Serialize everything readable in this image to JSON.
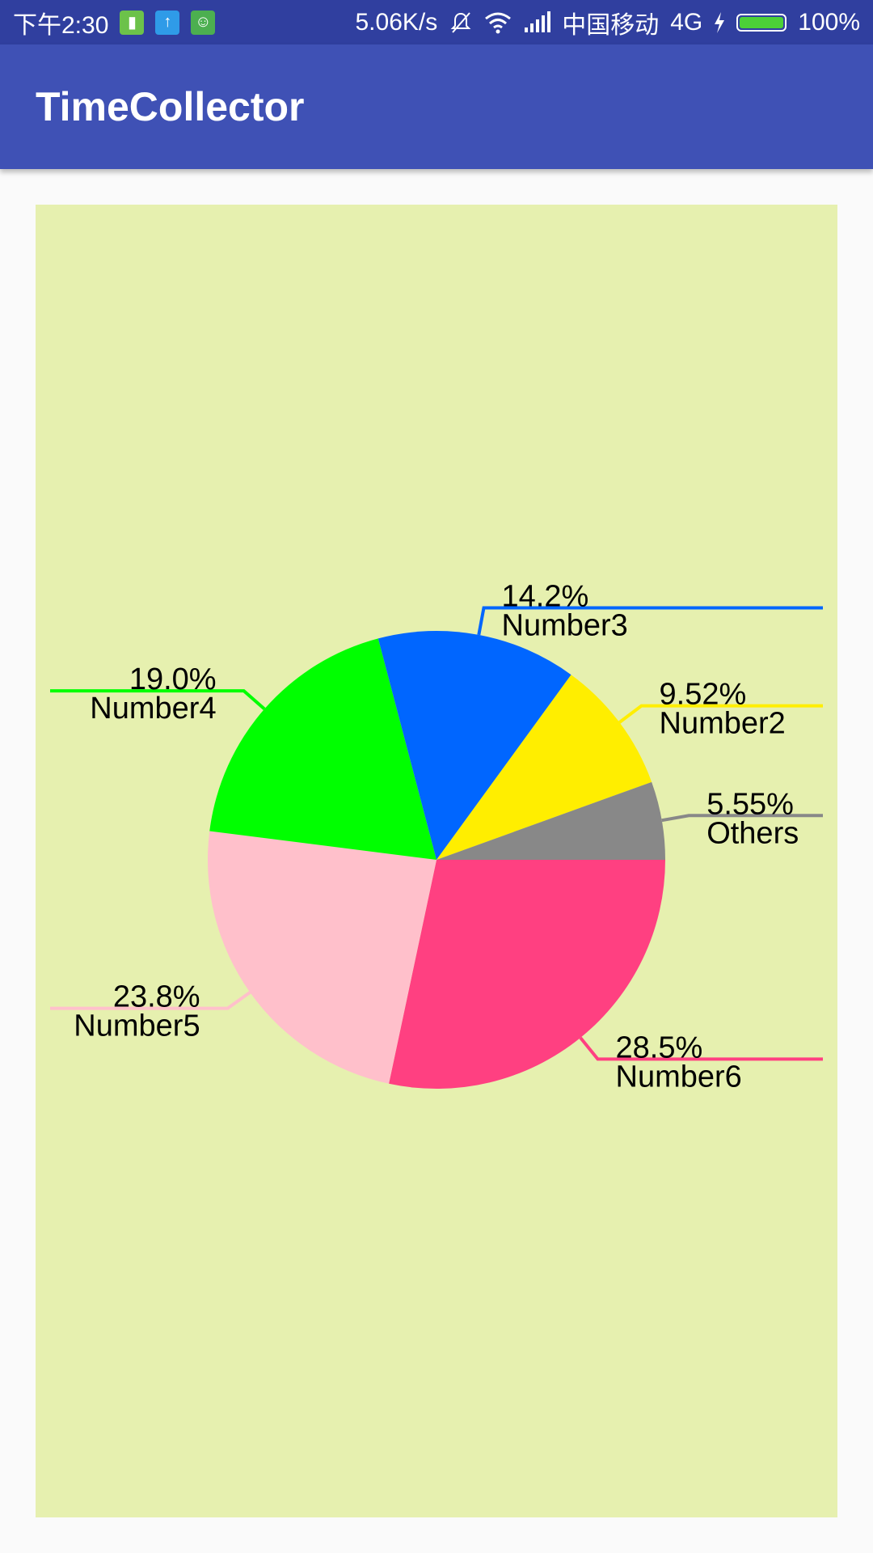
{
  "status_bar": {
    "time": "下午2:30",
    "network_speed": "5.06K/s",
    "carrier": "中国移动",
    "network_type": "4G",
    "battery": "100%",
    "battery_level": 1.0,
    "notification_icons": [
      {
        "name": "battery-app-notification-icon",
        "color": "#6CC24A",
        "glyph": "▮"
      },
      {
        "name": "upload-notification-icon",
        "color": "#2F9BE8",
        "glyph": "↑"
      },
      {
        "name": "android-notification-icon",
        "color": "#4CAF50",
        "glyph": "☺"
      }
    ]
  },
  "app_bar": {
    "title": "TimeCollector",
    "color": "#3F51B5",
    "status_color": "#303F9F"
  },
  "chart_data": {
    "type": "pie",
    "background": "#E6F0AF",
    "start_angle_deg": 0,
    "direction": "clockwise",
    "slices": [
      {
        "label": "Number6",
        "percent_label": "28.5%",
        "value": 28.5,
        "color": "#FF4081"
      },
      {
        "label": "Number5",
        "percent_label": "23.8%",
        "value": 23.8,
        "color": "#FFC0CB"
      },
      {
        "label": "Number4",
        "percent_label": "19.0%",
        "value": 19.0,
        "color": "#00FF00"
      },
      {
        "label": "Number3",
        "percent_label": "14.2%",
        "value": 14.2,
        "color": "#0066FF"
      },
      {
        "label": "Number2",
        "percent_label": "9.52%",
        "value": 9.52,
        "color": "#FFEE00"
      },
      {
        "label": "Others",
        "percent_label": "5.55%",
        "value": 5.55,
        "color": "#888888"
      }
    ]
  }
}
